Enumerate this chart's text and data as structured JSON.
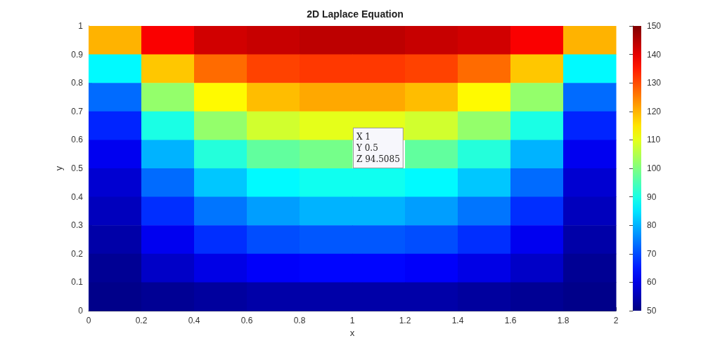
{
  "chart_data": {
    "type": "heatmap",
    "title": "2D Laplace Equation",
    "xlabel": "x",
    "ylabel": "y",
    "x": [
      0.1,
      0.3,
      0.5,
      0.7,
      0.9,
      1.1,
      1.3,
      1.5,
      1.7,
      1.9
    ],
    "y": [
      0.95,
      0.85,
      0.75,
      0.65,
      0.55,
      0.45,
      0.35,
      0.25,
      0.15,
      0.05
    ],
    "xlim": [
      0,
      2
    ],
    "xticks": [
      0,
      0.2,
      0.4,
      0.6,
      0.8,
      1,
      1.2,
      1.4,
      1.6,
      1.8,
      2
    ],
    "ylim": [
      0,
      1
    ],
    "yticks": [
      0,
      0.1,
      0.2,
      0.3,
      0.4,
      0.5,
      0.6,
      0.7,
      0.8,
      0.9,
      1
    ],
    "clim": [
      50,
      150
    ],
    "cticks": [
      50,
      60,
      70,
      80,
      90,
      100,
      110,
      120,
      130,
      140,
      150
    ],
    "cells": [
      [
        120,
        138,
        142,
        143,
        144,
        144,
        143,
        142,
        138,
        120
      ],
      [
        87,
        118,
        127,
        131,
        132,
        132,
        131,
        127,
        118,
        87
      ],
      [
        73,
        102,
        113,
        119,
        121,
        121,
        119,
        113,
        102,
        73
      ],
      [
        66,
        90,
        102,
        108,
        110,
        110,
        108,
        102,
        90,
        66
      ],
      [
        61,
        80,
        91,
        97,
        99,
        null,
        97,
        91,
        80,
        61
      ],
      [
        58,
        73,
        82,
        87,
        89,
        89,
        87,
        82,
        73,
        58
      ],
      [
        56,
        67,
        74,
        78,
        80,
        80,
        78,
        74,
        67,
        56
      ],
      [
        54,
        61,
        67,
        70,
        71,
        71,
        70,
        67,
        61,
        54
      ],
      [
        52,
        57,
        60,
        62,
        63,
        63,
        62,
        60,
        57,
        52
      ],
      [
        51,
        52,
        53,
        54,
        54,
        54,
        54,
        53,
        52,
        51
      ]
    ],
    "annotations": [
      "X 1\nY 0.5\nZ 94.5085"
    ],
    "grid": false
  }
}
